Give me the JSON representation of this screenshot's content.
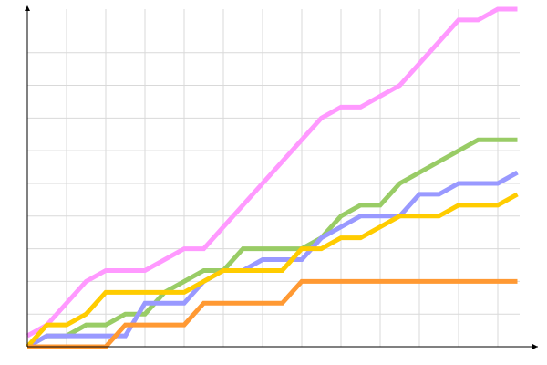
{
  "chart_data": {
    "type": "line",
    "title": "",
    "xlabel": "",
    "ylabel": "",
    "xlim": [
      0,
      26
    ],
    "ylim": [
      0,
      31
    ],
    "grid": true,
    "x_grid_step": 2,
    "y_grid_step": 3,
    "tick_labels": false,
    "x": [
      0,
      1,
      2,
      3,
      4,
      5,
      6,
      7,
      8,
      9,
      10,
      11,
      12,
      13,
      14,
      15,
      16,
      17,
      18,
      19,
      20,
      21,
      22,
      23,
      24,
      25
    ],
    "series": [
      {
        "color": "#ff99ff",
        "values": [
          1,
          2,
          4,
          6,
          7,
          7,
          7,
          8,
          9,
          9,
          11,
          13,
          15,
          17,
          19,
          21,
          22,
          22,
          23,
          24,
          26,
          28,
          30,
          30,
          31,
          31
        ]
      },
      {
        "color": "#99cc66",
        "values": [
          0,
          1,
          1,
          2,
          2,
          3,
          3,
          5,
          6,
          7,
          7,
          9,
          9,
          9,
          9,
          10,
          12,
          13,
          13,
          15,
          16,
          17,
          18,
          19,
          19,
          19
        ]
      },
      {
        "color": "#9999ff",
        "values": [
          0,
          1,
          1,
          1,
          1,
          1,
          4,
          4,
          4,
          6,
          7,
          7,
          8,
          8,
          8,
          10,
          11,
          12,
          12,
          12,
          14,
          14,
          15,
          15,
          15,
          16
        ]
      },
      {
        "color": "#ffcc00",
        "values": [
          0,
          2,
          2,
          3,
          5,
          5,
          5,
          5,
          5,
          6,
          7,
          7,
          7,
          7,
          9,
          9,
          10,
          10,
          11,
          12,
          12,
          12,
          13,
          13,
          13,
          14
        ]
      },
      {
        "color": "#ff9933",
        "values": [
          0,
          0,
          0,
          0,
          0,
          2,
          2,
          2,
          2,
          4,
          4,
          4,
          4,
          4,
          6,
          6,
          6,
          6,
          6,
          6,
          6,
          6,
          6,
          6,
          6,
          6
        ]
      }
    ]
  }
}
